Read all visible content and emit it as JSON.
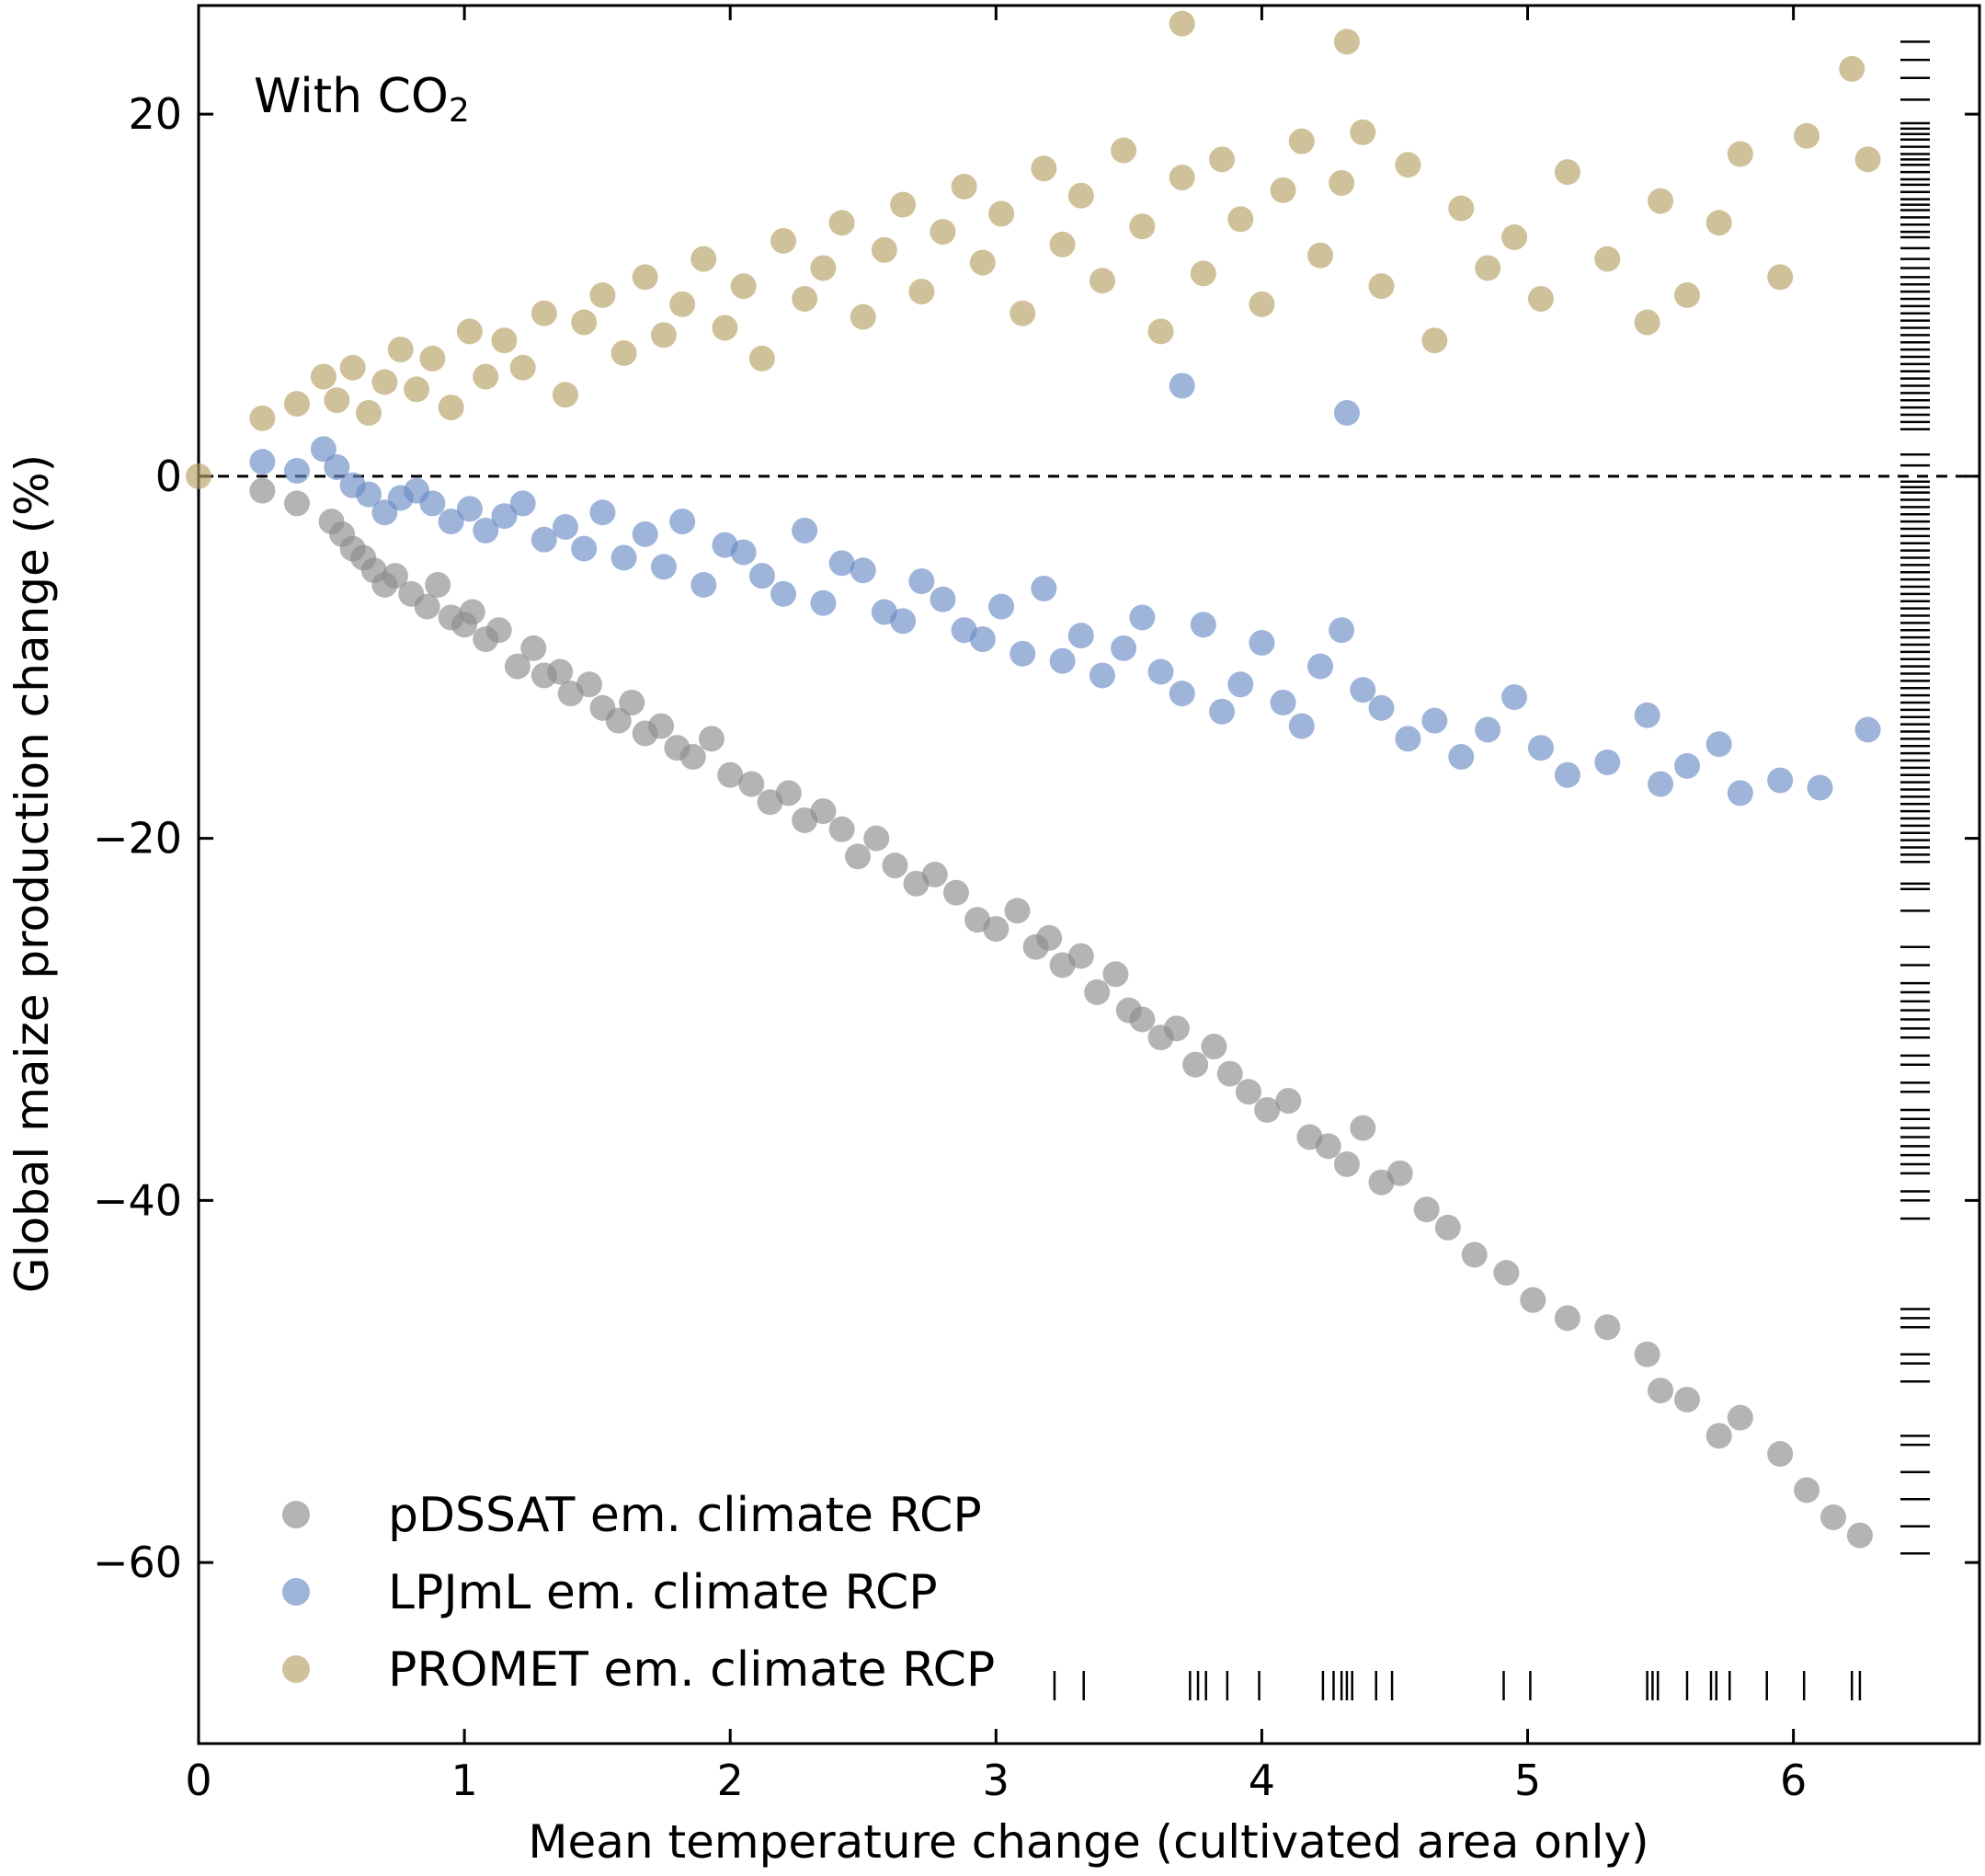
{
  "chart_data": {
    "type": "scatter",
    "title": "",
    "annotation": {
      "text": "With CO",
      "subscript": "2"
    },
    "xlabel": "Mean temperature change (cultivated area only)",
    "ylabel": "Global maize production change (%)",
    "xlim": [
      0,
      6.7
    ],
    "ylim": [
      -70,
      26
    ],
    "xticks": [
      0,
      1,
      2,
      3,
      4,
      5,
      6
    ],
    "xtick_labels": [
      "0",
      "1",
      "2",
      "3",
      "4",
      "5",
      "6"
    ],
    "yticks": [
      -60,
      -40,
      -20,
      0,
      20
    ],
    "ytick_labels": [
      "−60",
      "−40",
      "−20",
      "0",
      "20"
    ],
    "reference_line": {
      "y": 0,
      "style": "dashed"
    },
    "legend_position": "lower-left",
    "series": [
      {
        "name": "pDSSAT em. climate RCP",
        "color": "#8c8c8c",
        "x": [
          0.24,
          0.37,
          0.5,
          0.54,
          0.58,
          0.62,
          0.66,
          0.7,
          0.74,
          0.8,
          0.86,
          0.9,
          0.95,
          1.0,
          1.03,
          1.08,
          1.13,
          1.2,
          1.26,
          1.3,
          1.36,
          1.4,
          1.47,
          1.52,
          1.58,
          1.63,
          1.68,
          1.74,
          1.8,
          1.86,
          1.93,
          2.0,
          2.08,
          2.15,
          2.22,
          2.28,
          2.35,
          2.42,
          2.48,
          2.55,
          2.62,
          2.7,
          2.77,
          2.85,
          2.93,
          3.0,
          3.08,
          3.15,
          3.2,
          3.25,
          3.32,
          3.38,
          3.45,
          3.5,
          3.55,
          3.62,
          3.68,
          3.75,
          3.82,
          3.88,
          3.95,
          4.02,
          4.1,
          4.18,
          4.25,
          4.32,
          4.38,
          4.45,
          4.52,
          4.62,
          4.7,
          4.8,
          4.92,
          5.02,
          5.15,
          5.3,
          5.45,
          5.5,
          5.6,
          5.72,
          5.8,
          5.95,
          6.05,
          6.15,
          6.25
        ],
        "y": [
          -0.8,
          -1.5,
          -2.5,
          -3.2,
          -4.0,
          -4.5,
          -5.2,
          -6.0,
          -5.5,
          -6.5,
          -7.2,
          -6.0,
          -7.8,
          -8.2,
          -7.5,
          -9.0,
          -8.5,
          -10.5,
          -9.5,
          -11.0,
          -10.8,
          -12.0,
          -11.5,
          -12.8,
          -13.5,
          -12.5,
          -14.2,
          -13.8,
          -15.0,
          -15.5,
          -14.5,
          -16.5,
          -17.0,
          -18.0,
          -17.5,
          -19.0,
          -18.5,
          -19.5,
          -21.0,
          -20.0,
          -21.5,
          -22.5,
          -22.0,
          -23.0,
          -24.5,
          -25.0,
          -24.0,
          -26.0,
          -25.5,
          -27.0,
          -26.5,
          -28.5,
          -27.5,
          -29.5,
          -30.0,
          -31.0,
          -30.5,
          -32.5,
          -31.5,
          -33.0,
          -34.0,
          -35.0,
          -34.5,
          -36.5,
          -37.0,
          -38.0,
          -36.0,
          -39.0,
          -38.5,
          -40.5,
          -41.5,
          -43.0,
          -44.0,
          -45.5,
          -46.5,
          -47.0,
          -48.5,
          -50.5,
          -51.0,
          -53.0,
          -52.0,
          -54.0,
          -56.0,
          -57.5,
          -58.5
        ]
      },
      {
        "name": "LPJmL em. climate RCP",
        "color": "#6b8cc4",
        "x": [
          0.24,
          0.37,
          0.47,
          0.52,
          0.58,
          0.64,
          0.7,
          0.76,
          0.82,
          0.88,
          0.95,
          1.02,
          1.08,
          1.15,
          1.22,
          1.3,
          1.38,
          1.45,
          1.52,
          1.6,
          1.68,
          1.75,
          1.82,
          1.9,
          1.98,
          2.05,
          2.12,
          2.2,
          2.28,
          2.35,
          2.42,
          2.5,
          2.58,
          2.65,
          2.72,
          2.8,
          2.88,
          2.95,
          3.02,
          3.1,
          3.18,
          3.25,
          3.32,
          3.4,
          3.48,
          3.55,
          3.62,
          3.7,
          3.78,
          3.85,
          3.92,
          4.0,
          4.08,
          4.15,
          4.22,
          4.3,
          4.38,
          4.45,
          4.55,
          4.65,
          4.75,
          4.85,
          4.95,
          5.05,
          5.15,
          5.3,
          5.45,
          5.5,
          5.6,
          5.72,
          5.8,
          5.95,
          6.1,
          6.28,
          3.7,
          4.32
        ],
        "y": [
          0.8,
          0.3,
          1.5,
          0.5,
          -0.5,
          -1.0,
          -2.0,
          -1.2,
          -0.8,
          -1.5,
          -2.5,
          -1.8,
          -3.0,
          -2.2,
          -1.5,
          -3.5,
          -2.8,
          -4.0,
          -2.0,
          -4.5,
          -3.2,
          -5.0,
          -2.5,
          -6.0,
          -3.8,
          -4.2,
          -5.5,
          -6.5,
          -3.0,
          -7.0,
          -4.8,
          -5.2,
          -7.5,
          -8.0,
          -5.8,
          -6.8,
          -8.5,
          -9.0,
          -7.2,
          -9.8,
          -6.2,
          -10.2,
          -8.8,
          -11.0,
          -9.5,
          -7.8,
          -10.8,
          -12.0,
          -8.2,
          -13.0,
          -11.5,
          -9.2,
          -12.5,
          -13.8,
          -10.5,
          -8.5,
          -11.8,
          -12.8,
          -14.5,
          -13.5,
          -15.5,
          -14.0,
          -12.2,
          -15.0,
          -16.5,
          -15.8,
          -13.2,
          -17.0,
          -16.0,
          -14.8,
          -17.5,
          -16.8,
          -17.2,
          -14.0,
          5.0,
          3.5
        ]
      },
      {
        "name": "PROMET em. climate RCP",
        "color": "#b5a064",
        "x": [
          0.0,
          0.24,
          0.37,
          0.47,
          0.52,
          0.58,
          0.64,
          0.7,
          0.76,
          0.82,
          0.88,
          0.95,
          1.02,
          1.08,
          1.15,
          1.22,
          1.3,
          1.38,
          1.45,
          1.52,
          1.6,
          1.68,
          1.75,
          1.82,
          1.9,
          1.98,
          2.05,
          2.12,
          2.2,
          2.28,
          2.35,
          2.42,
          2.5,
          2.58,
          2.65,
          2.72,
          2.8,
          2.88,
          2.95,
          3.02,
          3.1,
          3.18,
          3.25,
          3.32,
          3.4,
          3.48,
          3.55,
          3.62,
          3.7,
          3.78,
          3.85,
          3.92,
          4.0,
          4.08,
          4.15,
          4.22,
          4.3,
          4.38,
          4.45,
          4.55,
          4.65,
          4.75,
          4.85,
          4.95,
          5.05,
          5.15,
          5.3,
          5.45,
          5.5,
          5.6,
          5.72,
          5.8,
          5.95,
          6.05,
          6.22,
          6.28,
          3.7,
          4.32
        ],
        "y": [
          0.0,
          3.2,
          4.0,
          5.5,
          4.2,
          6.0,
          3.5,
          5.2,
          7.0,
          4.8,
          6.5,
          3.8,
          8.0,
          5.5,
          7.5,
          6.0,
          9.0,
          4.5,
          8.5,
          10.0,
          6.8,
          11.0,
          7.8,
          9.5,
          12.0,
          8.2,
          10.5,
          6.5,
          13.0,
          9.8,
          11.5,
          14.0,
          8.8,
          12.5,
          15.0,
          10.2,
          13.5,
          16.0,
          11.8,
          14.5,
          9.0,
          17.0,
          12.8,
          15.5,
          10.8,
          18.0,
          13.8,
          8.0,
          16.5,
          11.2,
          17.5,
          14.2,
          9.5,
          15.8,
          18.5,
          12.2,
          16.2,
          19.0,
          10.5,
          17.2,
          7.5,
          14.8,
          11.5,
          13.2,
          9.8,
          16.8,
          12.0,
          8.5,
          15.2,
          10.0,
          14.0,
          17.8,
          11.0,
          18.8,
          22.5,
          17.5,
          25.0,
          24.0
        ]
      }
    ],
    "rug_x": [
      3.22,
      3.33,
      3.73,
      3.76,
      3.79,
      3.87,
      3.99,
      4.23,
      4.27,
      4.3,
      4.32,
      4.34,
      4.43,
      4.49,
      4.91,
      5.01,
      5.45,
      5.47,
      5.49,
      5.6,
      5.69,
      5.71,
      5.76,
      5.9,
      6.04,
      6.22,
      6.25
    ],
    "rug_y": [
      24,
      23,
      22,
      20.8,
      19.5,
      19.2,
      18.9,
      18.6,
      18.2,
      17.8,
      17.5,
      17.2,
      16.8,
      16.4,
      16.1,
      15.7,
      15.3,
      15.0,
      14.7,
      14.3,
      13.9,
      13.5,
      13.2,
      12.6,
      12.0,
      11.5,
      11.0,
      10.6,
      10.2,
      9.8,
      9.4,
      9.0,
      8.6,
      8.2,
      7.8,
      7.4,
      7.0,
      6.6,
      6.2,
      5.8,
      5.4,
      5.0,
      4.6,
      4.2,
      3.8,
      3.4,
      3.0,
      2.6,
      1.2,
      0.6,
      -0.3,
      -0.6,
      -0.9,
      -1.3,
      -1.7,
      -2.1,
      -2.5,
      -2.9,
      -3.3,
      -3.7,
      -4.1,
      -4.5,
      -4.9,
      -5.3,
      -5.7,
      -6.1,
      -6.5,
      -6.9,
      -7.3,
      -7.7,
      -8.1,
      -8.5,
      -8.9,
      -9.3,
      -9.7,
      -10.1,
      -10.5,
      -10.9,
      -11.3,
      -11.7,
      -12.1,
      -12.5,
      -12.9,
      -13.3,
      -13.7,
      -14.1,
      -14.5,
      -14.9,
      -15.3,
      -15.7,
      -16.1,
      -16.5,
      -16.9,
      -17.3,
      -17.7,
      -18.1,
      -18.5,
      -18.9,
      -19.3,
      -19.7,
      -20.1,
      -20.5,
      -20.9,
      -21.3,
      -22.5,
      -22.8,
      -24.0,
      -26.0,
      -27.0,
      -28.0,
      -28.5,
      -29.0,
      -29.5,
      -30.0,
      -30.5,
      -31.0,
      -32.0,
      -32.5,
      -33.5,
      -34.0,
      -35.0,
      -35.5,
      -36.0,
      -36.5,
      -37.0,
      -37.5,
      -38.0,
      -38.5,
      -39.5,
      -40.0,
      -41.0,
      -46.0,
      -46.5,
      -47.0,
      -48.5,
      -49.0,
      -50.0,
      -53.0,
      -53.5,
      -55.0,
      -56.5,
      -58.0,
      -59.5
    ]
  }
}
